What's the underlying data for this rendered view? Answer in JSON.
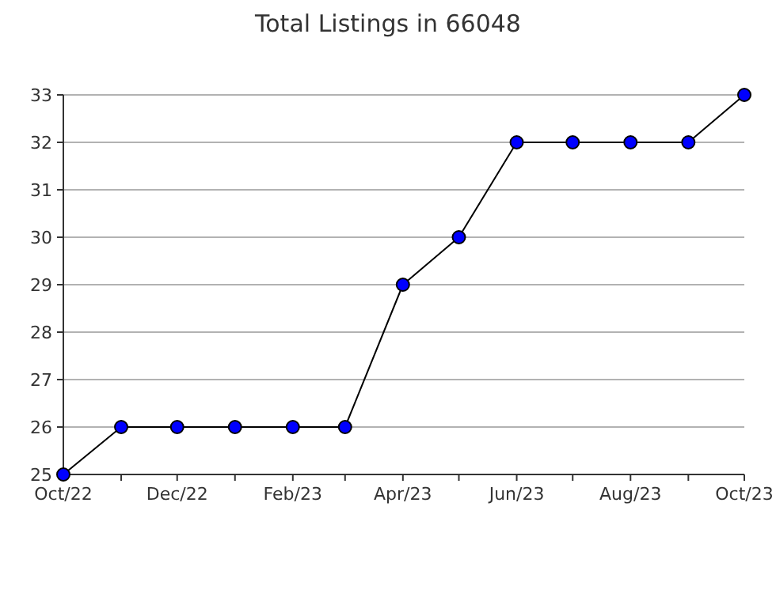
{
  "chart_data": {
    "type": "line",
    "title": "Total Listings in 66048",
    "x": [
      "2022-10",
      "2022-11",
      "2022-12",
      "2023-01",
      "2023-02",
      "2023-03",
      "2023-04",
      "2023-05",
      "2023-06",
      "2023-07",
      "2023-08",
      "2023-09",
      "2023-10"
    ],
    "series": [
      {
        "color": "#0000ff",
        "values": [
          25,
          26,
          26,
          26,
          26,
          26,
          29,
          30,
          32,
          32,
          32,
          32,
          33
        ]
      }
    ],
    "xlim": [
      "2022-10",
      "2023-10"
    ],
    "xticks": [
      {
        "value": "2022-10",
        "label": "Oct/22"
      },
      {
        "value": "2022-12",
        "label": "Dec/22"
      },
      {
        "value": "2023-02",
        "label": "Feb/23"
      },
      {
        "value": "2023-04",
        "label": "Apr/23"
      },
      {
        "value": "2023-06",
        "label": "Jun/23"
      },
      {
        "value": "2023-08",
        "label": "Aug/23"
      },
      {
        "value": "2023-10",
        "label": "Oct/23"
      }
    ],
    "ylim": [
      25,
      33
    ],
    "yticks": [
      25,
      26,
      27,
      28,
      29,
      30,
      31,
      32,
      33
    ],
    "grid": "y",
    "marker": "circle",
    "line_style": "solid"
  }
}
